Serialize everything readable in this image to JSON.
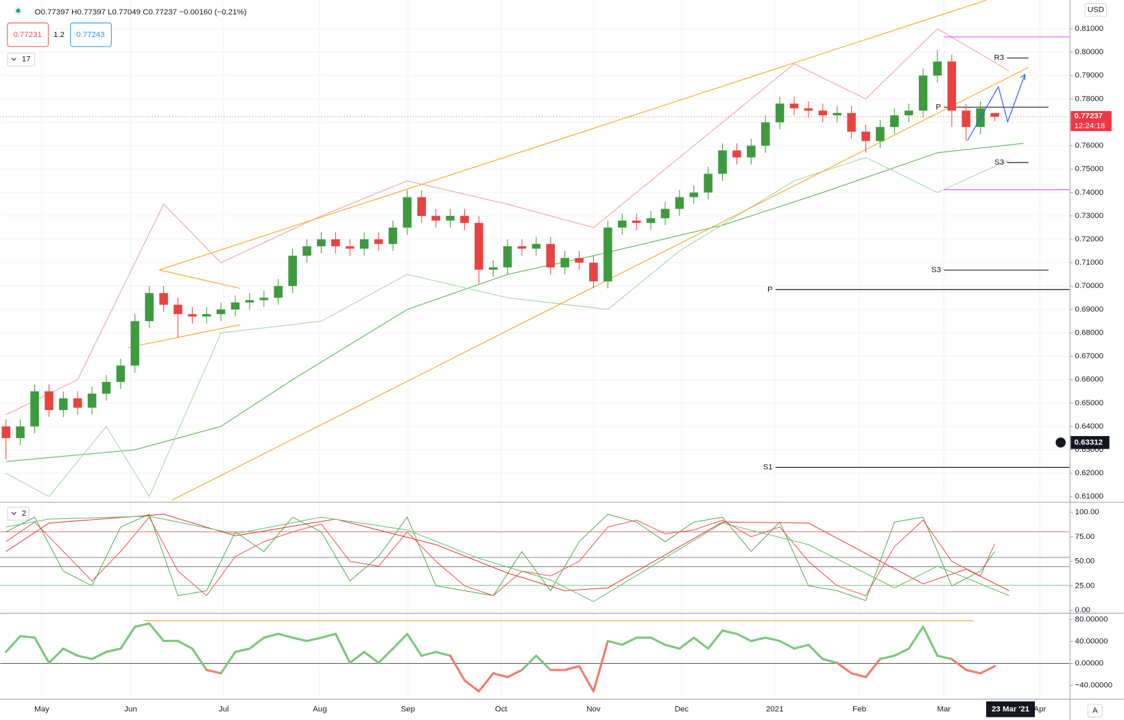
{
  "header": {
    "ohlc": "O0.77397 H0.77397 L0.77049 C0.77237 −0.00160 (−0.21%)",
    "bid": "0.77231",
    "spread": "1.2",
    "ask": "0.77243",
    "currency": "USD",
    "price_pane_toggle": "17",
    "stoch_pane_toggle": "2",
    "auto_button": "A"
  },
  "chart_data": [
    {
      "type": "candlestick",
      "up_color": "#3d9a3d",
      "down_color": "#e8433f",
      "grid": true,
      "open": [
        0.64,
        0.635,
        0.64,
        0.655,
        0.647,
        0.652,
        0.648,
        0.654,
        0.659,
        0.666,
        0.685,
        0.697,
        0.692,
        0.688,
        0.687,
        0.688,
        0.69,
        0.693,
        0.694,
        0.695,
        0.7,
        0.713,
        0.717,
        0.72,
        0.717,
        0.716,
        0.72,
        0.718,
        0.725,
        0.738,
        0.73,
        0.728,
        0.73,
        0.727,
        0.707,
        0.708,
        0.717,
        0.716,
        0.718,
        0.708,
        0.712,
        0.71,
        0.702,
        0.725,
        0.728,
        0.727,
        0.729,
        0.733,
        0.738,
        0.74,
        0.748,
        0.758,
        0.755,
        0.76,
        0.77,
        0.778,
        0.776,
        0.775,
        0.773,
        0.774,
        0.766,
        0.762,
        0.768,
        0.773,
        0.775,
        0.79,
        0.796,
        0.775,
        0.768,
        0.77397
      ],
      "high": [
        0.643,
        0.643,
        0.658,
        0.658,
        0.655,
        0.655,
        0.657,
        0.662,
        0.669,
        0.688,
        0.7,
        0.7,
        0.695,
        0.691,
        0.691,
        0.693,
        0.696,
        0.697,
        0.698,
        0.703,
        0.716,
        0.72,
        0.723,
        0.723,
        0.72,
        0.723,
        0.723,
        0.728,
        0.741,
        0.741,
        0.733,
        0.733,
        0.733,
        0.73,
        0.711,
        0.72,
        0.72,
        0.721,
        0.721,
        0.715,
        0.715,
        0.713,
        0.728,
        0.731,
        0.731,
        0.732,
        0.736,
        0.741,
        0.743,
        0.751,
        0.761,
        0.761,
        0.763,
        0.773,
        0.781,
        0.781,
        0.779,
        0.778,
        0.777,
        0.777,
        0.769,
        0.771,
        0.776,
        0.778,
        0.793,
        0.801,
        0.799,
        0.778,
        0.779,
        0.77397
      ],
      "low": [
        0.626,
        0.632,
        0.637,
        0.644,
        0.644,
        0.645,
        0.645,
        0.651,
        0.656,
        0.663,
        0.682,
        0.689,
        0.678,
        0.684,
        0.684,
        0.685,
        0.687,
        0.69,
        0.691,
        0.692,
        0.697,
        0.71,
        0.714,
        0.714,
        0.713,
        0.713,
        0.715,
        0.715,
        0.722,
        0.727,
        0.725,
        0.725,
        0.724,
        0.701,
        0.704,
        0.705,
        0.713,
        0.713,
        0.705,
        0.705,
        0.707,
        0.699,
        0.699,
        0.722,
        0.724,
        0.724,
        0.726,
        0.73,
        0.735,
        0.737,
        0.745,
        0.752,
        0.752,
        0.757,
        0.767,
        0.773,
        0.772,
        0.77,
        0.77,
        0.763,
        0.757,
        0.759,
        0.765,
        0.77,
        0.772,
        0.787,
        0.768,
        0.762,
        0.765,
        0.77049
      ],
      "close": [
        0.635,
        0.64,
        0.655,
        0.647,
        0.652,
        0.648,
        0.654,
        0.659,
        0.666,
        0.685,
        0.697,
        0.692,
        0.688,
        0.687,
        0.688,
        0.69,
        0.693,
        0.694,
        0.695,
        0.7,
        0.713,
        0.717,
        0.72,
        0.717,
        0.716,
        0.72,
        0.718,
        0.725,
        0.738,
        0.73,
        0.728,
        0.73,
        0.727,
        0.707,
        0.708,
        0.717,
        0.716,
        0.718,
        0.708,
        0.712,
        0.71,
        0.702,
        0.725,
        0.728,
        0.727,
        0.729,
        0.733,
        0.738,
        0.74,
        0.748,
        0.758,
        0.755,
        0.76,
        0.77,
        0.778,
        0.776,
        0.775,
        0.773,
        0.774,
        0.766,
        0.762,
        0.768,
        0.773,
        0.775,
        0.79,
        0.796,
        0.775,
        0.768,
        0.776,
        0.77237
      ],
      "xlim": [
        -0.4,
        74.2
      ],
      "ylim": [
        0.6079,
        0.8223
      ],
      "xticks": [
        {
          "value": 2.5,
          "label": "May"
        },
        {
          "value": 8.7,
          "label": "Jun"
        },
        {
          "value": 15.2,
          "label": "Jul"
        },
        {
          "value": 21.9,
          "label": "Aug"
        },
        {
          "value": 28.05,
          "label": "Sep"
        },
        {
          "value": 34.55,
          "label": "Oct"
        },
        {
          "value": 41,
          "label": "Nov"
        },
        {
          "value": 47.15,
          "label": "Dec"
        },
        {
          "value": 53.65,
          "label": "2021"
        },
        {
          "value": 59.55,
          "label": "Feb"
        },
        {
          "value": 65.45,
          "label": "Mar"
        },
        {
          "value": 72.15,
          "label": "Apr"
        }
      ],
      "current_date": {
        "value": 70.1,
        "label": "23 Mar '21"
      },
      "yticks": [
        {
          "value": 0.61,
          "label": "0.61000"
        },
        {
          "value": 0.62,
          "label": "0.62000"
        },
        {
          "value": 0.63,
          "label": "0.63000"
        },
        {
          "value": 0.64,
          "label": "0.64000"
        },
        {
          "value": 0.65,
          "label": "0.65000"
        },
        {
          "value": 0.66,
          "label": "0.66000"
        },
        {
          "value": 0.67,
          "label": "0.67000"
        },
        {
          "value": 0.68,
          "label": "0.68000"
        },
        {
          "value": 0.69,
          "label": "0.69000"
        },
        {
          "value": 0.7,
          "label": "0.70000"
        },
        {
          "value": 0.71,
          "label": "0.71000"
        },
        {
          "value": 0.72,
          "label": "0.72000"
        },
        {
          "value": 0.73,
          "label": "0.73000"
        },
        {
          "value": 0.74,
          "label": "0.74000"
        },
        {
          "value": 0.75,
          "label": "0.75000"
        },
        {
          "value": 0.76,
          "label": "0.76000"
        },
        {
          "value": 0.77,
          "label": "0.77000"
        },
        {
          "value": 0.78,
          "label": "0.78000"
        },
        {
          "value": 0.79,
          "label": "0.79000"
        },
        {
          "value": 0.8,
          "label": "0.80000"
        },
        {
          "value": 0.81,
          "label": "0.81000"
        }
      ],
      "lines": [
        {
          "color": "#5cb85c",
          "x": [
            0,
            9,
            15,
            20,
            28,
            35,
            41,
            50,
            57,
            65,
            71
          ],
          "values": [
            0.625,
            0.63,
            0.64,
            0.66,
            0.69,
            0.705,
            0.713,
            0.726,
            0.74,
            0.757,
            0.761
          ]
        },
        {
          "color": "#f4a3a3",
          "x": [
            0,
            5,
            11,
            15,
            22,
            28,
            35,
            41,
            47,
            55,
            60,
            65,
            70
          ],
          "values": [
            0.645,
            0.66,
            0.735,
            0.71,
            0.73,
            0.745,
            0.735,
            0.725,
            0.755,
            0.795,
            0.78,
            0.81,
            0.792
          ]
        },
        {
          "color": "#a8d8a8",
          "x": [
            0,
            3,
            7,
            10,
            15,
            22,
            28,
            35,
            42,
            47,
            55,
            60,
            65,
            70
          ],
          "values": [
            0.62,
            0.61,
            0.64,
            0.61,
            0.68,
            0.685,
            0.705,
            0.695,
            0.69,
            0.715,
            0.745,
            0.755,
            0.74,
            0.754
          ]
        },
        {
          "color": "#f5a623",
          "x": [
            10.7,
            68.4
          ],
          "values": [
            0.7069,
            0.8222
          ]
        },
        {
          "color": "#f5a623",
          "x": [
            11.6,
            71.35
          ],
          "values": [
            0.6085,
            0.7935
          ]
        },
        {
          "color": "#f5a623",
          "x": [
            10.7,
            16.35
          ],
          "values": [
            0.7069,
            0.699
          ]
        },
        {
          "color": "#f5a623",
          "x": [
            8.5,
            16.35
          ],
          "values": [
            0.6737,
            0.6835
          ]
        }
      ],
      "levels": [
        {
          "label": "P",
          "value": 0.6985,
          "x": [
            53.7,
            74.2
          ],
          "color": "#000000"
        },
        {
          "label": "S1",
          "value": 0.6225,
          "x": [
            53.7,
            74.2
          ],
          "color": "#000000"
        },
        {
          "label": "S3",
          "value": 0.7068,
          "x": [
            65.45,
            72.75
          ],
          "color": "#000000"
        },
        {
          "label": "P",
          "value": 0.7765,
          "x": [
            65.45,
            72.75
          ],
          "color": "#000000"
        },
        {
          "label": "R3",
          "value": 0.7975,
          "x": [
            69.85,
            71.35
          ],
          "color": "#000000"
        },
        {
          "label": "S3",
          "value": 0.7528,
          "x": [
            69.85,
            71.35
          ],
          "color": "#000000"
        },
        {
          "value": 0.8065,
          "x": [
            65.45,
            74.2
          ],
          "color": "#e040fb"
        },
        {
          "value": 0.7412,
          "x": [
            65.45,
            74.2
          ],
          "color": "#e040fb"
        }
      ],
      "last_price": 0.77237,
      "countdown": "12:24:18",
      "crosshair_price": 0.63312
    },
    {
      "type": "stochastic",
      "ylim": [
        -2.2,
        109.5
      ],
      "yticks": [
        {
          "value": 0,
          "label": "0.00"
        },
        {
          "value": 25,
          "label": "25.00"
        },
        {
          "value": 50,
          "label": "50.00"
        },
        {
          "value": 75,
          "label": "75.00"
        },
        {
          "value": 100,
          "label": "100.00"
        }
      ],
      "levels": [
        {
          "value": 80,
          "color": "#e57373"
        },
        {
          "value": 54,
          "color": "#888888"
        },
        {
          "value": 44.5,
          "color": "#888888"
        },
        {
          "value": 25.5,
          "color": "#81c784"
        }
      ],
      "series": [
        {
          "color": "#4caf50",
          "x": [
            0,
            2,
            4,
            6,
            8,
            10,
            12,
            14,
            16,
            18,
            20,
            22,
            24,
            26,
            28,
            30,
            32,
            34,
            36,
            38,
            40,
            42,
            44,
            46,
            48,
            50,
            52,
            54,
            56,
            58,
            60,
            62,
            64,
            66,
            68,
            69
          ],
          "values": [
            80,
            95,
            40,
            25,
            85,
            98,
            15,
            20,
            80,
            60,
            95,
            80,
            30,
            55,
            95,
            25,
            20,
            15,
            60,
            20,
            70,
            98,
            90,
            70,
            90,
            95,
            60,
            90,
            25,
            20,
            10,
            90,
            95,
            25,
            40,
            60
          ]
        },
        {
          "color": "#ef5350",
          "x": [
            0,
            2,
            4,
            6,
            8,
            10,
            12,
            14,
            16,
            18,
            20,
            22,
            24,
            26,
            28,
            30,
            32,
            34,
            36,
            38,
            40,
            42,
            44,
            46,
            48,
            50,
            52,
            54,
            56,
            58,
            60,
            62,
            64,
            66,
            68,
            69
          ],
          "values": [
            70,
            90,
            60,
            30,
            60,
            95,
            40,
            15,
            55,
            70,
            80,
            88,
            50,
            45,
            80,
            50,
            25,
            15,
            40,
            35,
            50,
            85,
            92,
            78,
            82,
            92,
            75,
            85,
            50,
            25,
            15,
            65,
            92,
            50,
            35,
            68
          ]
        },
        {
          "color": "#e53935",
          "x": [
            0,
            3,
            11,
            16,
            23,
            30,
            35,
            39,
            42,
            50,
            56,
            64,
            67,
            70
          ],
          "values": [
            60,
            89,
            98,
            76,
            93,
            67,
            38,
            20,
            23,
            90,
            89,
            27,
            42,
            20
          ]
        },
        {
          "color": "#66bb6a",
          "x": [
            0,
            3,
            10,
            16,
            22,
            28,
            33,
            38,
            41,
            50,
            56,
            62,
            65,
            70
          ],
          "values": [
            85,
            93,
            96,
            78,
            95,
            82,
            53,
            31,
            9,
            89,
            67,
            23,
            45,
            15
          ]
        }
      ]
    },
    {
      "type": "oscillator",
      "up_color": "#7bc67b",
      "down_color": "#ef7b6b",
      "ylim": [
        -64.1,
        90.3
      ],
      "yticks": [
        {
          "value": -40,
          "label": "−40.00000"
        },
        {
          "value": 0,
          "label": "0.00000"
        },
        {
          "value": 40,
          "label": "40.00000"
        },
        {
          "value": 80,
          "label": "80.00000"
        }
      ],
      "values": [
        21,
        50,
        47,
        1,
        27,
        14,
        8,
        21,
        27,
        67,
        73,
        41,
        41,
        27,
        -12,
        -18,
        21,
        27,
        47,
        54,
        47,
        41,
        47,
        54,
        1,
        21,
        1,
        27,
        54,
        14,
        21,
        14,
        -31,
        -51,
        -18,
        -25,
        -12,
        14,
        -12,
        -12,
        -5,
        -51,
        41,
        34,
        47,
        47,
        34,
        27,
        47,
        27,
        60,
        54,
        41,
        47,
        41,
        27,
        34,
        8,
        1,
        -18,
        -25,
        8,
        14,
        27,
        67,
        14,
        8,
        -12,
        -18,
        -5
      ],
      "trend_line": {
        "value": 78,
        "x": [
          9.6,
          67.5
        ],
        "color": "#f5a623"
      }
    }
  ]
}
